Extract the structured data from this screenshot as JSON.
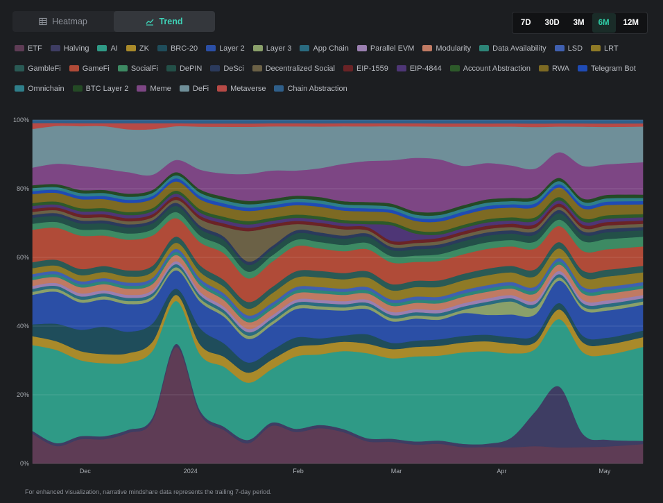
{
  "view_tabs": [
    {
      "label": "Heatmap",
      "icon": "table-icon",
      "active": false
    },
    {
      "label": "Trend",
      "icon": "trend-chart-icon",
      "active": true
    }
  ],
  "ranges": [
    {
      "label": "7D",
      "active": false
    },
    {
      "label": "30D",
      "active": false
    },
    {
      "label": "3M",
      "active": false
    },
    {
      "label": "6M",
      "active": true
    },
    {
      "label": "12M",
      "active": false
    }
  ],
  "footnote": "For enhanced visualization, narrative mindshare data represents the trailing 7-day period.",
  "chart_data": {
    "type": "area",
    "stacked": true,
    "normalized": true,
    "xlabel": "",
    "ylabel": "",
    "ylim": [
      0,
      100
    ],
    "y_ticks": [
      "0%",
      "20%",
      "40%",
      "60%",
      "80%",
      "100%"
    ],
    "x_ticks": [
      {
        "label": "Dec",
        "week": 3.2
      },
      {
        "label": "2024",
        "week": 7.6
      },
      {
        "label": "Feb",
        "week": 12.1
      },
      {
        "label": "Mar",
        "week": 16.2
      },
      {
        "label": "Apr",
        "week": 20.6
      },
      {
        "label": "May",
        "week": 24.9
      }
    ],
    "x_range": [
      1,
      26.5
    ],
    "grid": true,
    "legend_position": "top",
    "x": [
      1,
      2,
      3,
      4,
      5,
      6,
      7,
      8,
      9,
      10,
      11,
      12,
      13,
      14,
      15,
      16,
      17,
      18,
      19,
      20,
      21,
      22,
      23,
      24,
      25,
      26
    ],
    "series": [
      {
        "name": "ETF",
        "color": "#5e3c55",
        "values": [
          10,
          6,
          8,
          8,
          10,
          14,
          38,
          15,
          10,
          6,
          12,
          10,
          11,
          10,
          7,
          7,
          6,
          6,
          5,
          5,
          5,
          5,
          5,
          5,
          5,
          6
        ]
      },
      {
        "name": "Halving",
        "color": "#3e3d63",
        "values": [
          1,
          1,
          1,
          1,
          1,
          1,
          1,
          1,
          1,
          1,
          1,
          1,
          1,
          1,
          1,
          1,
          1,
          1,
          1,
          1,
          3,
          10,
          19,
          4,
          2,
          1
        ]
      },
      {
        "name": "AI",
        "color": "#2f9a86",
        "values": [
          29,
          32,
          25,
          24,
          22,
          22,
          14,
          17,
          18,
          17,
          17,
          23,
          22,
          25,
          27,
          26,
          27,
          26,
          28,
          28,
          26,
          18,
          21,
          25,
          25,
          29
        ]
      },
      {
        "name": "ZK",
        "color": "#a98a2a",
        "values": [
          3,
          3,
          3,
          3,
          3,
          3,
          2,
          3,
          3,
          3,
          3,
          3,
          3,
          3,
          3,
          3,
          3,
          3,
          3,
          3,
          3,
          2,
          3,
          3,
          3,
          3
        ]
      },
      {
        "name": "BRC-20",
        "color": "#1f4d5b",
        "values": [
          4,
          6,
          7,
          9,
          7,
          6,
          2,
          5,
          4,
          3,
          3,
          3,
          2,
          2,
          3,
          2,
          2,
          2,
          2,
          2,
          2,
          2,
          2,
          2,
          2,
          2
        ]
      },
      {
        "name": "Layer 2",
        "color": "#2b4fa6",
        "values": [
          10,
          11,
          9,
          9,
          9,
          8,
          6,
          8,
          8,
          7,
          8,
          9,
          9,
          8,
          8,
          7,
          7,
          6,
          7,
          6,
          7,
          6,
          7,
          8,
          8,
          8
        ]
      },
      {
        "name": "Layer 3",
        "color": "#8aa06a",
        "values": [
          1,
          1,
          1,
          1,
          1,
          1,
          1,
          1,
          1,
          1,
          1,
          1,
          1,
          1,
          1,
          1,
          1,
          1,
          1,
          3,
          4,
          2,
          1,
          1,
          1,
          1
        ]
      },
      {
        "name": "App Chain",
        "color": "#2a6b80",
        "values": [
          1,
          1,
          1,
          1,
          1,
          1,
          1,
          1,
          1,
          1,
          1,
          1,
          1,
          1,
          1,
          1,
          1,
          1,
          1,
          1,
          1,
          1,
          1,
          1,
          1,
          1
        ]
      },
      {
        "name": "Parallel EVM",
        "color": "#9a7fb0",
        "values": [
          1,
          1,
          1,
          1,
          1,
          1,
          1,
          1,
          1,
          1,
          1,
          1,
          1,
          1,
          1,
          1,
          1,
          1,
          1,
          1,
          1,
          1,
          1,
          1,
          1,
          1
        ]
      },
      {
        "name": "Modularity",
        "color": "#c07a63",
        "values": [
          2,
          2,
          2,
          2,
          2,
          2,
          2,
          2,
          2,
          2,
          2,
          2,
          2,
          2,
          2,
          2,
          2,
          2,
          2,
          2,
          2,
          2,
          2,
          2,
          2,
          2
        ]
      },
      {
        "name": "Data Availability",
        "color": "#2d8578",
        "values": [
          1,
          1,
          1,
          1,
          1,
          1,
          1,
          1,
          1,
          1,
          1,
          1,
          1,
          1,
          1,
          1,
          1,
          1,
          1,
          1,
          1,
          1,
          1,
          1,
          1,
          1
        ]
      },
      {
        "name": "LSD",
        "color": "#4060b0",
        "values": [
          1,
          1,
          1,
          1,
          1,
          1,
          1,
          1,
          1,
          1,
          1,
          1,
          1,
          1,
          1,
          1,
          1,
          1,
          1,
          1,
          1,
          1,
          1,
          1,
          1,
          1
        ]
      },
      {
        "name": "LRT",
        "color": "#8f7a26",
        "values": [
          2,
          2,
          2,
          2,
          2,
          2,
          2,
          2,
          2,
          2,
          3,
          3,
          3,
          3,
          3,
          3,
          3,
          3,
          3,
          3,
          3,
          3,
          3,
          3,
          3,
          3
        ]
      },
      {
        "name": "GambleFi",
        "color": "#2a5a55",
        "values": [
          2,
          2,
          2,
          2,
          2,
          2,
          2,
          2,
          2,
          2,
          2,
          2,
          2,
          2,
          2,
          2,
          2,
          2,
          2,
          2,
          2,
          2,
          2,
          2,
          2,
          2
        ]
      },
      {
        "name": "GameFi",
        "color": "#b04b38",
        "values": [
          11,
          11,
          11,
          10,
          10,
          10,
          6,
          7,
          8,
          7,
          8,
          8,
          7,
          7,
          7,
          7,
          6,
          6,
          6,
          6,
          6,
          6,
          5,
          6,
          6,
          6
        ]
      },
      {
        "name": "SocialFi",
        "color": "#3d8a63",
        "values": [
          2,
          2,
          2,
          2,
          2,
          2,
          2,
          2,
          2,
          2,
          2,
          2,
          2,
          2,
          2,
          2,
          2,
          2,
          2,
          2,
          2,
          2,
          2,
          3,
          3,
          3
        ]
      },
      {
        "name": "DePIN",
        "color": "#235048",
        "values": [
          2,
          2,
          2,
          2,
          2,
          2,
          2,
          2,
          2,
          2,
          2,
          2,
          2,
          2,
          2,
          2,
          2,
          2,
          2,
          2,
          2,
          2,
          2,
          2,
          2,
          2
        ]
      },
      {
        "name": "DeSci",
        "color": "#2b3a5c",
        "values": [
          1,
          1,
          1,
          1,
          1,
          1,
          1,
          1,
          1,
          1,
          1,
          1,
          1,
          1,
          1,
          1,
          1,
          1,
          1,
          1,
          1,
          1,
          1,
          1,
          1,
          1
        ]
      },
      {
        "name": "Decentralized Social",
        "color": "#6b6146",
        "values": [
          1,
          1,
          1,
          1,
          1,
          1,
          1,
          2,
          3,
          9,
          6,
          2,
          2,
          2,
          1,
          1,
          1,
          1,
          1,
          1,
          1,
          1,
          1,
          1,
          1,
          1
        ]
      },
      {
        "name": "EIP-1559",
        "color": "#6a2326",
        "values": [
          1,
          1,
          1,
          1,
          1,
          1,
          1,
          1,
          1,
          1,
          1,
          1,
          1,
          1,
          1,
          1,
          1,
          1,
          1,
          1,
          1,
          1,
          1,
          1,
          1,
          1
        ]
      },
      {
        "name": "EIP-4844",
        "color": "#4e3676",
        "values": [
          1,
          1,
          1,
          1,
          1,
          1,
          1,
          1,
          1,
          1,
          1,
          1,
          1,
          1,
          1,
          5,
          2,
          1,
          1,
          1,
          1,
          1,
          1,
          1,
          1,
          1
        ]
      },
      {
        "name": "Account Abstraction",
        "color": "#2d5a2a",
        "values": [
          1,
          1,
          1,
          1,
          1,
          1,
          1,
          1,
          1,
          1,
          1,
          1,
          1,
          1,
          1,
          1,
          1,
          1,
          1,
          1,
          1,
          1,
          1,
          1,
          1,
          1
        ]
      },
      {
        "name": "RWA",
        "color": "#7d6a23",
        "values": [
          3,
          3,
          3,
          3,
          3,
          3,
          3,
          3,
          3,
          3,
          3,
          3,
          3,
          3,
          3,
          3,
          3,
          3,
          3,
          3,
          3,
          3,
          3,
          3,
          3,
          3
        ]
      },
      {
        "name": "Telegram Bot",
        "color": "#1f4bb5",
        "values": [
          1,
          1,
          1,
          1,
          1,
          1,
          1,
          1,
          1,
          1,
          1,
          1,
          1,
          1,
          1,
          1,
          1,
          1,
          1,
          1,
          1,
          1,
          1,
          1,
          1,
          1
        ]
      },
      {
        "name": "Omnichain",
        "color": "#2f7f8a",
        "values": [
          1,
          1,
          1,
          1,
          1,
          1,
          1,
          1,
          1,
          1,
          1,
          1,
          1,
          1,
          1,
          1,
          1,
          1,
          1,
          1,
          1,
          1,
          1,
          1,
          1,
          1
        ]
      },
      {
        "name": "BTC Layer 2",
        "color": "#244a25",
        "values": [
          1,
          1,
          1,
          1,
          1,
          1,
          1,
          1,
          1,
          1,
          1,
          1,
          1,
          1,
          1,
          1,
          1,
          1,
          1,
          1,
          1,
          1,
          1,
          1,
          1,
          1
        ]
      },
      {
        "name": "Meme",
        "color": "#7d4684",
        "values": [
          6,
          7,
          8,
          7,
          7,
          5,
          4,
          6,
          7,
          8,
          9,
          8,
          9,
          12,
          13,
          14,
          17,
          16,
          12,
          11,
          10,
          8,
          8,
          10,
          9,
          10
        ]
      },
      {
        "name": "DeFi",
        "color": "#6f8f99",
        "values": [
          13,
          13,
          13,
          14,
          14,
          15,
          11,
          13,
          14,
          14,
          14,
          14,
          13,
          12,
          11,
          11,
          10,
          10,
          12,
          11,
          12,
          12,
          8,
          12,
          11,
          11
        ]
      },
      {
        "name": "Metaverse",
        "color": "#b74a46",
        "values": [
          2,
          1,
          1,
          1,
          2,
          2,
          1,
          1,
          1,
          1,
          1,
          1,
          1,
          1,
          1,
          1,
          1,
          1,
          1,
          1,
          1,
          1,
          1,
          1,
          1,
          1
        ]
      },
      {
        "name": "Chain Abstraction",
        "color": "#2f5f8a",
        "values": [
          1,
          1,
          1,
          1,
          1,
          1,
          1,
          1,
          1,
          1,
          1,
          1,
          1,
          1,
          1,
          1,
          1,
          1,
          1,
          1,
          1,
          1,
          1,
          1,
          1,
          1
        ]
      }
    ]
  }
}
